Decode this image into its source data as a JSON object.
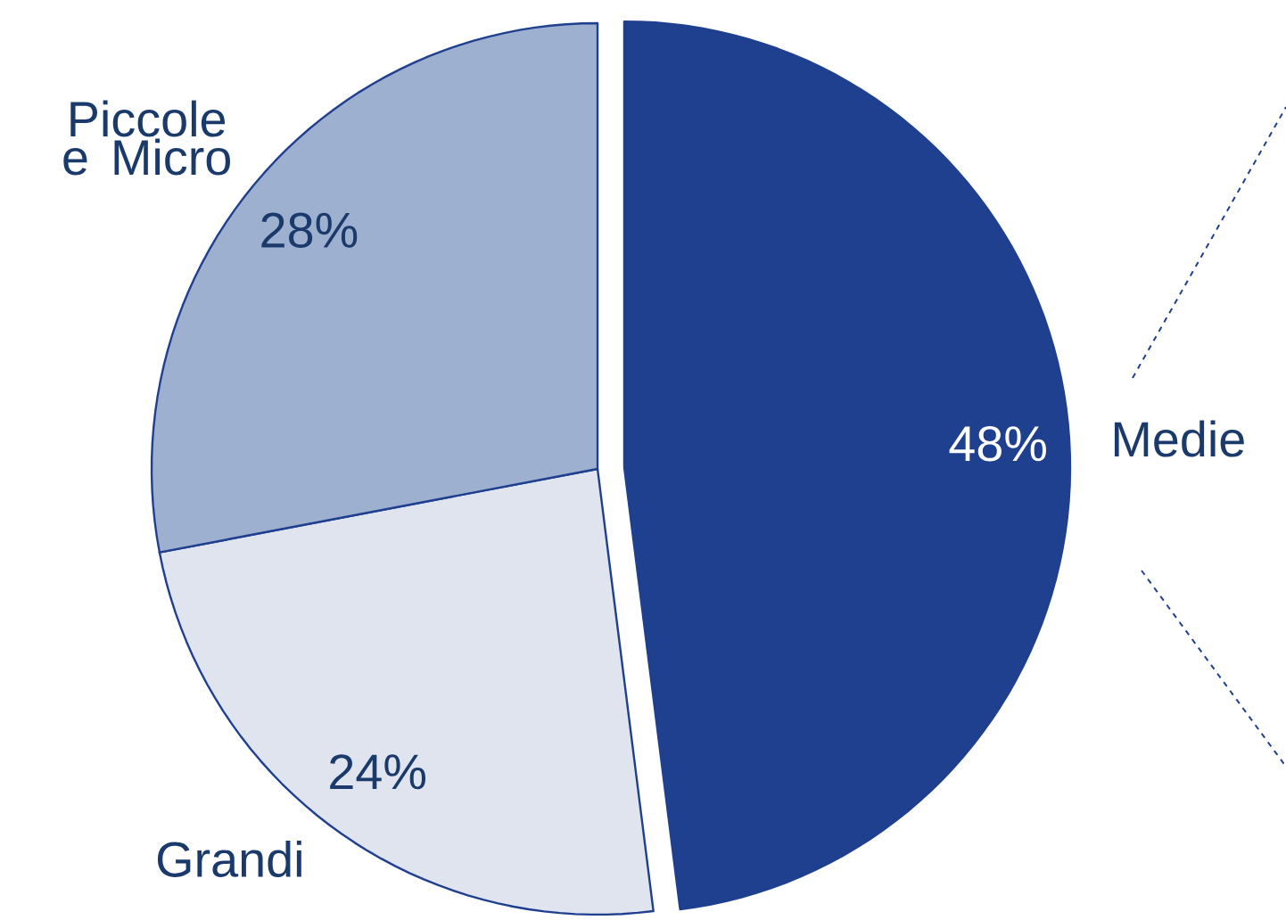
{
  "chart_data": {
    "type": "pie",
    "categories": [
      "Medie",
      "Grandi",
      "Piccole e Micro"
    ],
    "values": [
      48,
      24,
      28
    ],
    "value_labels": [
      "48%",
      "24%",
      "28%"
    ],
    "colors": [
      "#1f3f8f",
      "#dfe4ef",
      "#9eb0cf"
    ],
    "legend": false
  }
}
